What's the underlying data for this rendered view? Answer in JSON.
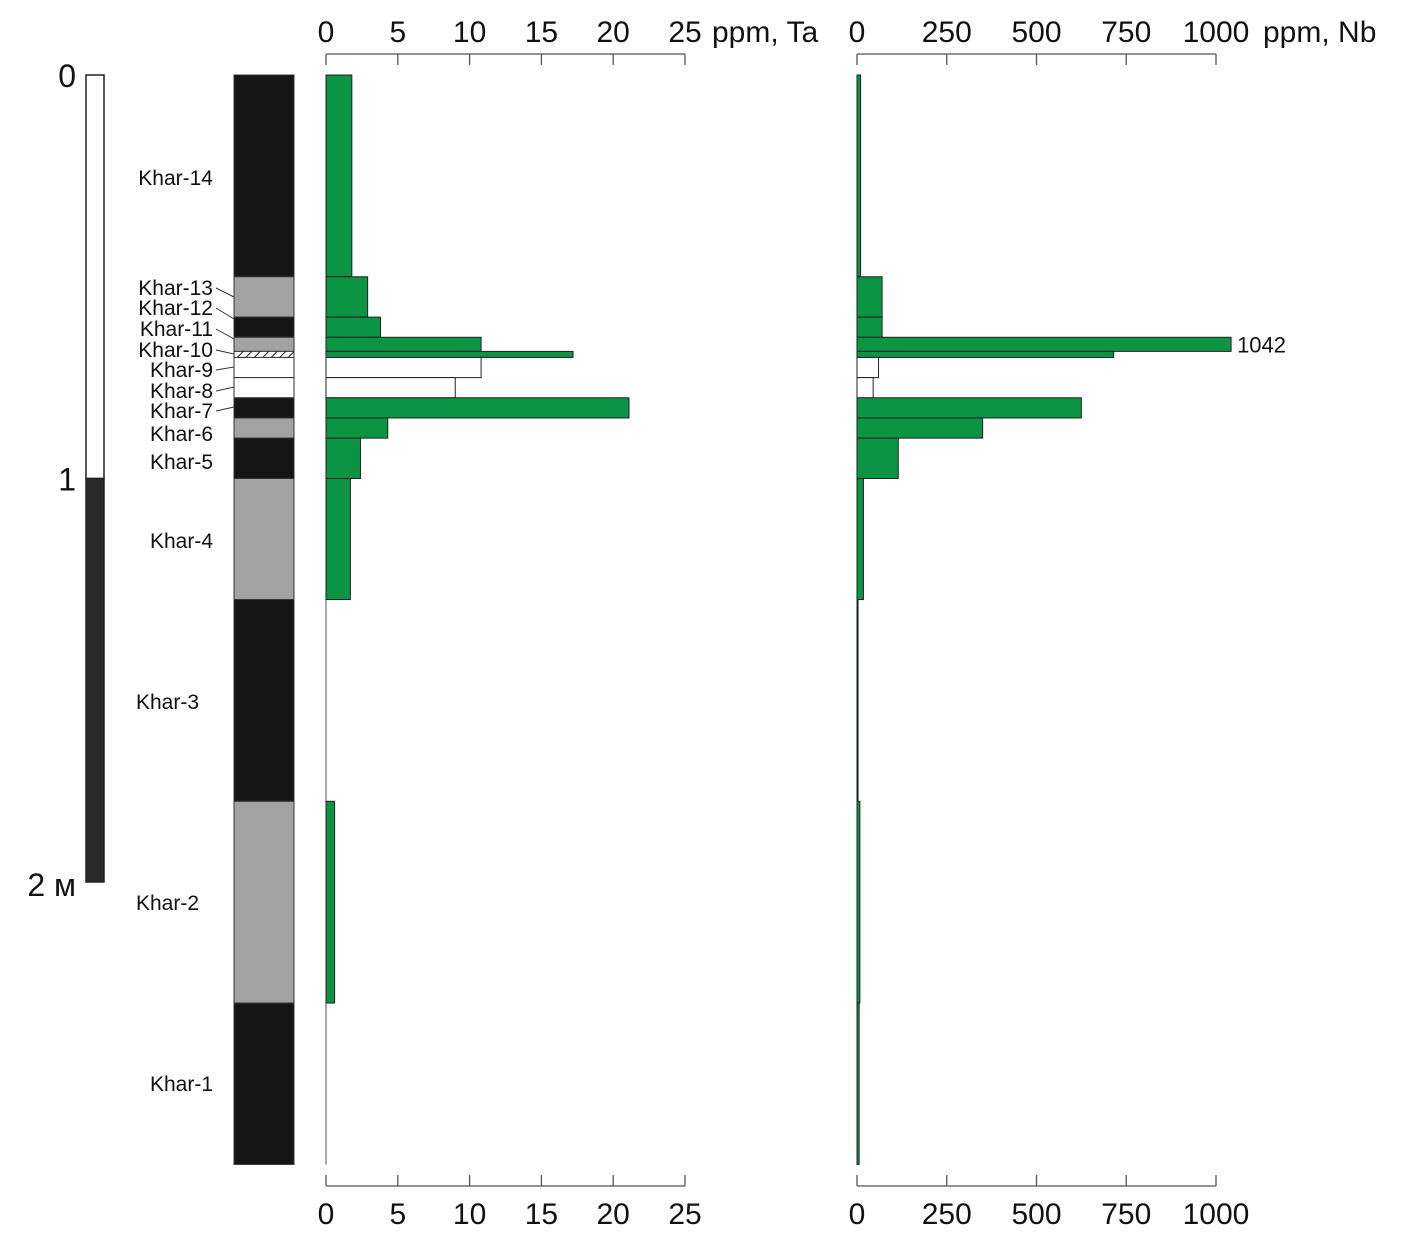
{
  "colors": {
    "bar_fill": "#0b9444",
    "open_bar_fill": "#ffffff",
    "black_unit": "#151515",
    "gray_unit": "#a2a2a2",
    "scale_dark": "#2a2a2a",
    "axis": "#555555"
  },
  "depth_scale": {
    "unit": "м",
    "ticks": [
      {
        "depth": 0,
        "label": "0"
      },
      {
        "depth": 1,
        "label": "1"
      },
      {
        "depth": 2,
        "label": "2 м"
      }
    ]
  },
  "chart_data": [
    {
      "type": "bar",
      "orientation": "horizontal",
      "element": "Ta",
      "xlabel": "ppm, Ta",
      "xlim": [
        0,
        25
      ],
      "xticks": [
        0,
        5,
        10,
        15,
        20,
        25
      ],
      "xtick_labels": [
        "0",
        "5",
        "10",
        "15",
        "20",
        "25"
      ],
      "y_unit": "m",
      "ylim": [
        0,
        2.7
      ],
      "categories": [
        "Khar-14",
        "Khar-13",
        "Khar-12",
        "Khar-11",
        "Khar-10",
        "Khar-9",
        "Khar-8",
        "Khar-7",
        "Khar-6",
        "Khar-5",
        "Khar-4",
        "Khar-3",
        "Khar-2",
        "Khar-1"
      ],
      "series": [
        {
          "values": [
            1.8,
            2.9,
            3.8,
            10.8,
            17.2,
            10.8,
            9.0,
            21.1,
            4.3,
            2.4,
            1.7,
            0,
            0.6,
            0
          ],
          "depth_top": [
            0,
            0.5,
            0.6,
            0.65,
            0.685,
            0.7,
            0.75,
            0.8,
            0.85,
            0.9,
            1.0,
            1.3,
            1.8,
            2.3
          ],
          "depth_bottom": [
            0.5,
            0.6,
            0.65,
            0.685,
            0.7,
            0.75,
            0.8,
            0.85,
            0.9,
            1.0,
            1.3,
            1.8,
            2.3,
            2.7
          ],
          "open_bars": [
            false,
            false,
            false,
            false,
            false,
            true,
            true,
            false,
            false,
            false,
            false,
            false,
            false,
            false
          ]
        }
      ]
    },
    {
      "type": "bar",
      "orientation": "horizontal",
      "element": "Nb",
      "xlabel": "ppm, Nb",
      "xlim": [
        0,
        1000
      ],
      "xticks": [
        0,
        250,
        500,
        750,
        1000
      ],
      "xtick_labels": [
        "0",
        "250",
        "500",
        "750",
        "1000"
      ],
      "y_unit": "m",
      "ylim": [
        0,
        2.7
      ],
      "categories": [
        "Khar-14",
        "Khar-13",
        "Khar-12",
        "Khar-11",
        "Khar-10",
        "Khar-9",
        "Khar-8",
        "Khar-7",
        "Khar-6",
        "Khar-5",
        "Khar-4",
        "Khar-3",
        "Khar-2",
        "Khar-1"
      ],
      "series": [
        {
          "values": [
            10,
            70,
            70,
            1042,
            715,
            60,
            45,
            625,
            350,
            115,
            18,
            3,
            8,
            6
          ],
          "depth_top": [
            0,
            0.5,
            0.6,
            0.65,
            0.685,
            0.7,
            0.75,
            0.8,
            0.85,
            0.9,
            1.0,
            1.3,
            1.8,
            2.3
          ],
          "depth_bottom": [
            0.5,
            0.6,
            0.65,
            0.685,
            0.7,
            0.75,
            0.8,
            0.85,
            0.9,
            1.0,
            1.3,
            1.8,
            2.3,
            2.7
          ],
          "open_bars": [
            false,
            false,
            false,
            false,
            false,
            true,
            true,
            false,
            false,
            false,
            false,
            false,
            false,
            false
          ],
          "annotations": [
            {
              "category": "Khar-11",
              "text": "1042"
            }
          ]
        }
      ]
    }
  ],
  "lithology": [
    {
      "label": "Khar-14",
      "top": 0,
      "bottom": 0.5,
      "fill": "black"
    },
    {
      "label": "Khar-13",
      "top": 0.5,
      "bottom": 0.6,
      "fill": "gray"
    },
    {
      "label": "Khar-12",
      "top": 0.6,
      "bottom": 0.65,
      "fill": "black"
    },
    {
      "label": "Khar-11",
      "top": 0.65,
      "bottom": 0.685,
      "fill": "gray"
    },
    {
      "label": "Khar-10",
      "top": 0.685,
      "bottom": 0.7,
      "fill": "hatched"
    },
    {
      "label": "Khar-9",
      "top": 0.7,
      "bottom": 0.75,
      "fill": "white"
    },
    {
      "label": "Khar-8",
      "top": 0.75,
      "bottom": 0.8,
      "fill": "white"
    },
    {
      "label": "Khar-7",
      "top": 0.8,
      "bottom": 0.85,
      "fill": "black"
    },
    {
      "label": "Khar-6",
      "top": 0.85,
      "bottom": 0.9,
      "fill": "gray"
    },
    {
      "label": "Khar-5",
      "top": 0.9,
      "bottom": 1.0,
      "fill": "black"
    },
    {
      "label": "Khar-4",
      "top": 1.0,
      "bottom": 1.3,
      "fill": "gray"
    },
    {
      "label": "Khar-3",
      "top": 1.3,
      "bottom": 1.8,
      "fill": "black"
    },
    {
      "label": "Khar-2",
      "top": 1.8,
      "bottom": 2.3,
      "fill": "gray"
    },
    {
      "label": "Khar-1",
      "top": 2.3,
      "bottom": 2.7,
      "fill": "black"
    }
  ]
}
